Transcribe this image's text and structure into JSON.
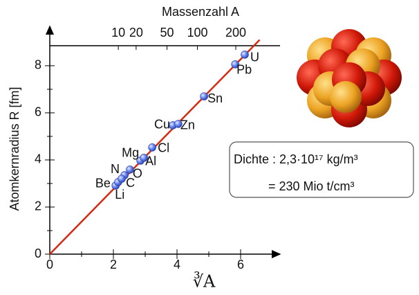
{
  "chart_data": {
    "type": "scatter",
    "top_axis_label": "Massenzahl A",
    "x_label": "∛A",
    "y_label": "Atomkernradius R [fm]",
    "xlim": [
      0,
      7
    ],
    "ylim": [
      0,
      8.85
    ],
    "xticks": [
      0,
      2,
      4,
      6
    ],
    "xticks_minor": [
      1,
      3,
      5
    ],
    "yticks": [
      0,
      2,
      4,
      6,
      8
    ],
    "yticks_minor": [
      1,
      3,
      5,
      7
    ],
    "x2scale": "cbrt",
    "x2ticks": [
      10,
      20,
      50,
      100,
      200
    ],
    "series": [
      {
        "labels": [
          "Li",
          "Be",
          "C",
          "N",
          "O",
          "Mg",
          "Al",
          "Cl",
          "Cu",
          "Zn",
          "Sn",
          "Pb",
          "U"
        ],
        "color": "#5a78f0",
        "x": [
          2.07,
          2.15,
          2.35,
          2.26,
          2.52,
          2.85,
          2.96,
          3.22,
          3.87,
          4.04,
          4.85,
          5.83,
          6.13
        ],
        "y": [
          2.91,
          3.06,
          3.35,
          3.2,
          3.59,
          3.97,
          4.09,
          4.53,
          5.47,
          5.53,
          6.7,
          8.06,
          8.47
        ]
      }
    ],
    "fit_line": {
      "color": "#d42a12",
      "x": [
        0,
        6.6
      ],
      "y": [
        0,
        9.1
      ]
    },
    "annotation": {
      "line1": "Dichte : 2,3·10¹⁷ kg/m³",
      "line2": "= 230 Mio t/cm³"
    }
  }
}
